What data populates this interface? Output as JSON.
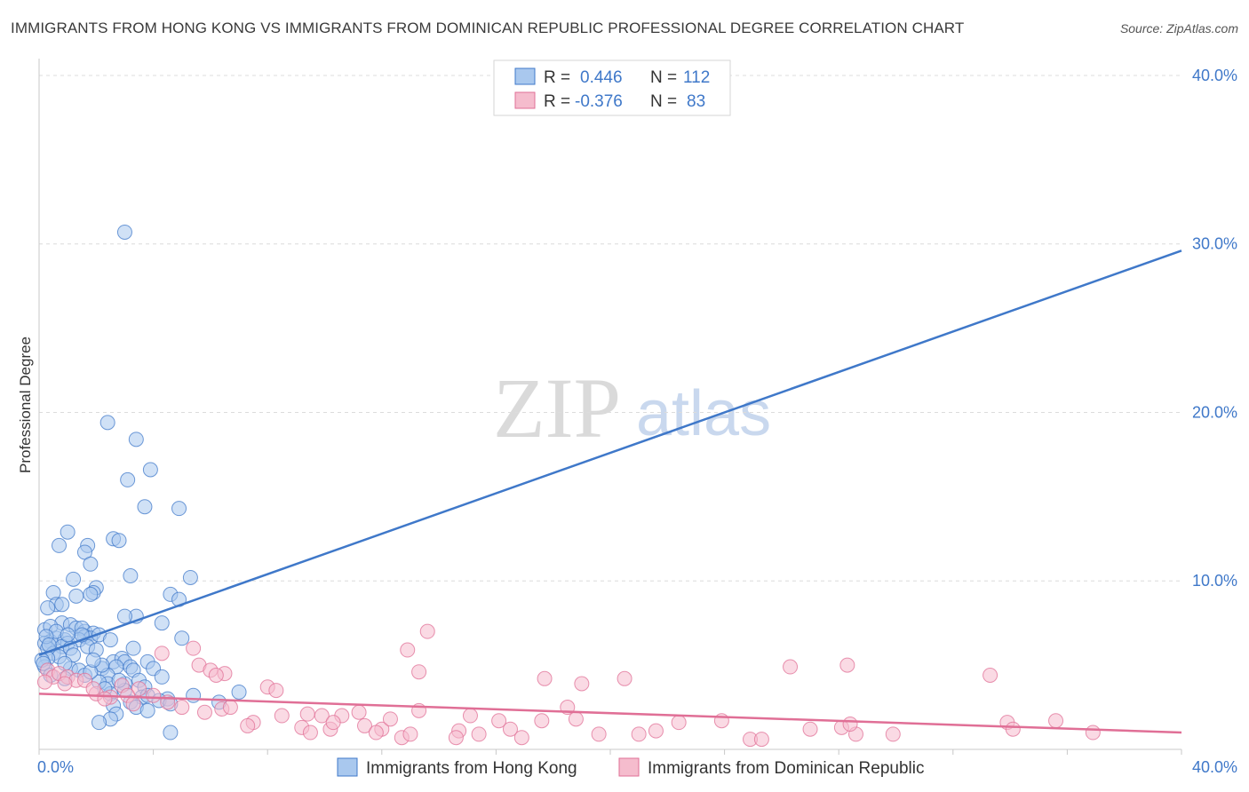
{
  "title": "IMMIGRANTS FROM HONG KONG VS IMMIGRANTS FROM DOMINICAN REPUBLIC PROFESSIONAL DEGREE CORRELATION CHART",
  "source": "Source: ZipAtlas.com",
  "watermark": {
    "zip": "ZIP",
    "atlas": "atlas"
  },
  "stats": [
    {
      "r_label": "R = ",
      "r_value": "0.446",
      "n_label": "N = ",
      "n_value": "112",
      "color": "#3f78c9"
    },
    {
      "r_label": "R = ",
      "r_value": "-0.376",
      "n_label": "N = ",
      "n_value": "83",
      "color": "#e06f96"
    }
  ],
  "chart_data": {
    "type": "scatter",
    "title": "IMMIGRANTS FROM HONG KONG VS IMMIGRANTS FROM DOMINICAN REPUBLIC PROFESSIONAL DEGREE CORRELATION CHART",
    "xlabel": "",
    "ylabel": "Professional Degree",
    "xlim": [
      0,
      40
    ],
    "ylim": [
      0,
      41
    ],
    "x_tick_labels": [
      "0.0%",
      "40.0%"
    ],
    "y_ticks": [
      10,
      20,
      30,
      40
    ],
    "y_tick_labels": [
      "10.0%",
      "20.0%",
      "30.0%",
      "40.0%"
    ],
    "grid": true,
    "legend_position": "bottom",
    "series": [
      {
        "name": "Immigrants from Hong Kong",
        "color": "#3f78c9",
        "fill": "#a9c8ee",
        "trend": {
          "x": [
            0,
            40
          ],
          "y": [
            5.6,
            29.6
          ]
        },
        "points": [
          [
            3.0,
            30.7
          ],
          [
            2.4,
            19.4
          ],
          [
            3.4,
            18.4
          ],
          [
            3.9,
            16.6
          ],
          [
            3.1,
            16.0
          ],
          [
            3.7,
            14.4
          ],
          [
            4.9,
            14.3
          ],
          [
            1.0,
            12.9
          ],
          [
            0.7,
            12.1
          ],
          [
            1.7,
            12.1
          ],
          [
            2.6,
            12.5
          ],
          [
            2.8,
            12.4
          ],
          [
            1.6,
            11.7
          ],
          [
            1.8,
            11.0
          ],
          [
            3.2,
            10.3
          ],
          [
            5.3,
            10.2
          ],
          [
            1.2,
            10.1
          ],
          [
            2.0,
            9.6
          ],
          [
            0.5,
            9.3
          ],
          [
            1.3,
            9.1
          ],
          [
            1.9,
            9.3
          ],
          [
            1.8,
            9.2
          ],
          [
            4.6,
            9.2
          ],
          [
            4.9,
            8.9
          ],
          [
            0.6,
            8.6
          ],
          [
            0.8,
            8.6
          ],
          [
            0.3,
            8.4
          ],
          [
            3.4,
            7.9
          ],
          [
            3.0,
            7.9
          ],
          [
            4.3,
            7.5
          ],
          [
            0.8,
            7.5
          ],
          [
            1.1,
            7.4
          ],
          [
            1.3,
            7.2
          ],
          [
            1.6,
            7.0
          ],
          [
            0.2,
            7.1
          ],
          [
            0.4,
            7.3
          ],
          [
            1.5,
            7.2
          ],
          [
            1.9,
            6.9
          ],
          [
            1.6,
            6.7
          ],
          [
            1.8,
            6.6
          ],
          [
            2.1,
            6.8
          ],
          [
            2.5,
            6.5
          ],
          [
            0.4,
            6.4
          ],
          [
            0.6,
            6.6
          ],
          [
            0.9,
            6.5
          ],
          [
            1.0,
            6.3
          ],
          [
            1.4,
            6.5
          ],
          [
            5.0,
            6.6
          ],
          [
            0.2,
            6.3
          ],
          [
            0.3,
            6.0
          ],
          [
            0.8,
            6.1
          ],
          [
            1.1,
            6.0
          ],
          [
            1.7,
            6.1
          ],
          [
            2.0,
            5.9
          ],
          [
            0.5,
            5.7
          ],
          [
            0.7,
            5.5
          ],
          [
            1.2,
            5.6
          ],
          [
            0.3,
            5.4
          ],
          [
            2.6,
            5.2
          ],
          [
            2.9,
            5.4
          ],
          [
            3.0,
            5.2
          ],
          [
            3.8,
            5.2
          ],
          [
            3.2,
            4.9
          ],
          [
            0.2,
            4.9
          ],
          [
            1.1,
            4.8
          ],
          [
            1.4,
            4.7
          ],
          [
            2.2,
            4.8
          ],
          [
            2.7,
            4.9
          ],
          [
            3.3,
            4.7
          ],
          [
            4.0,
            4.8
          ],
          [
            2.4,
            4.4
          ],
          [
            1.6,
            4.4
          ],
          [
            0.9,
            4.2
          ],
          [
            3.5,
            4.1
          ],
          [
            2.4,
            3.9
          ],
          [
            2.1,
            4.0
          ],
          [
            3.0,
            3.9
          ],
          [
            3.7,
            3.7
          ],
          [
            5.4,
            3.2
          ],
          [
            7.0,
            3.4
          ],
          [
            2.5,
            3.3
          ],
          [
            3.6,
            3.1
          ],
          [
            3.8,
            3.2
          ],
          [
            4.5,
            3.0
          ],
          [
            3.2,
            2.8
          ],
          [
            2.6,
            2.6
          ],
          [
            4.2,
            2.9
          ],
          [
            3.4,
            2.5
          ],
          [
            3.8,
            2.3
          ],
          [
            6.3,
            2.8
          ],
          [
            4.6,
            2.7
          ],
          [
            2.7,
            2.1
          ],
          [
            2.5,
            1.8
          ],
          [
            2.1,
            1.6
          ],
          [
            4.6,
            1.0
          ],
          [
            0.1,
            5.3
          ],
          [
            0.15,
            5.1
          ],
          [
            0.4,
            4.4
          ],
          [
            1.5,
            6.8
          ],
          [
            3.3,
            6.0
          ],
          [
            2.2,
            5.0
          ],
          [
            0.6,
            7.0
          ],
          [
            1.0,
            6.8
          ],
          [
            0.25,
            6.7
          ],
          [
            0.35,
            6.2
          ],
          [
            4.3,
            4.3
          ],
          [
            3.0,
            3.5
          ],
          [
            2.3,
            3.6
          ],
          [
            1.8,
            4.6
          ],
          [
            0.9,
            5.1
          ],
          [
            1.9,
            5.3
          ],
          [
            2.8,
            4.1
          ]
        ]
      },
      {
        "name": "Immigrants from Dominican Republic",
        "color": "#e06f96",
        "fill": "#f5bccd",
        "trend": {
          "x": [
            0,
            40
          ],
          "y": [
            3.3,
            1.0
          ]
        },
        "points": [
          [
            13.6,
            7.0
          ],
          [
            12.9,
            5.9
          ],
          [
            5.4,
            6.0
          ],
          [
            4.3,
            5.7
          ],
          [
            28.3,
            5.0
          ],
          [
            26.3,
            4.9
          ],
          [
            33.3,
            4.4
          ],
          [
            13.3,
            4.6
          ],
          [
            5.6,
            5.0
          ],
          [
            6.0,
            4.7
          ],
          [
            6.5,
            4.5
          ],
          [
            6.2,
            4.4
          ],
          [
            17.7,
            4.2
          ],
          [
            20.5,
            4.2
          ],
          [
            19.0,
            3.9
          ],
          [
            0.3,
            4.7
          ],
          [
            0.5,
            4.3
          ],
          [
            0.7,
            4.5
          ],
          [
            1.0,
            4.3
          ],
          [
            1.3,
            4.1
          ],
          [
            0.9,
            3.9
          ],
          [
            1.6,
            4.1
          ],
          [
            2.9,
            3.8
          ],
          [
            3.5,
            3.6
          ],
          [
            4.0,
            3.2
          ],
          [
            8.0,
            3.7
          ],
          [
            8.3,
            3.5
          ],
          [
            2.0,
            3.3
          ],
          [
            2.5,
            3.1
          ],
          [
            3.1,
            3.2
          ],
          [
            3.3,
            2.7
          ],
          [
            4.5,
            2.8
          ],
          [
            5.0,
            2.5
          ],
          [
            6.4,
            2.4
          ],
          [
            6.7,
            2.5
          ],
          [
            9.4,
            2.1
          ],
          [
            8.5,
            2.0
          ],
          [
            7.5,
            1.6
          ],
          [
            7.3,
            1.4
          ],
          [
            9.2,
            1.3
          ],
          [
            9.9,
            2.0
          ],
          [
            9.5,
            1.0
          ],
          [
            10.2,
            1.2
          ],
          [
            10.6,
            2.0
          ],
          [
            10.3,
            1.6
          ],
          [
            11.2,
            2.2
          ],
          [
            11.4,
            1.4
          ],
          [
            12.0,
            1.2
          ],
          [
            11.8,
            1.0
          ],
          [
            12.3,
            1.8
          ],
          [
            12.7,
            0.7
          ],
          [
            13.0,
            0.9
          ],
          [
            13.3,
            2.3
          ],
          [
            15.1,
            2.0
          ],
          [
            14.7,
            1.1
          ],
          [
            14.6,
            0.7
          ],
          [
            15.4,
            0.9
          ],
          [
            16.1,
            1.7
          ],
          [
            16.5,
            1.2
          ],
          [
            16.9,
            0.7
          ],
          [
            17.6,
            1.7
          ],
          [
            18.8,
            1.8
          ],
          [
            18.5,
            2.5
          ],
          [
            19.6,
            0.9
          ],
          [
            21.0,
            0.9
          ],
          [
            21.6,
            1.1
          ],
          [
            22.4,
            1.6
          ],
          [
            23.9,
            1.7
          ],
          [
            24.9,
            0.6
          ],
          [
            25.3,
            0.6
          ],
          [
            27.0,
            1.2
          ],
          [
            28.1,
            1.3
          ],
          [
            28.6,
            0.9
          ],
          [
            28.4,
            1.5
          ],
          [
            29.9,
            0.9
          ],
          [
            33.9,
            1.6
          ],
          [
            34.1,
            1.2
          ],
          [
            35.6,
            1.7
          ],
          [
            36.9,
            1.0
          ],
          [
            0.2,
            4.0
          ],
          [
            1.9,
            3.6
          ],
          [
            2.3,
            3.0
          ],
          [
            5.8,
            2.2
          ]
        ]
      }
    ]
  }
}
